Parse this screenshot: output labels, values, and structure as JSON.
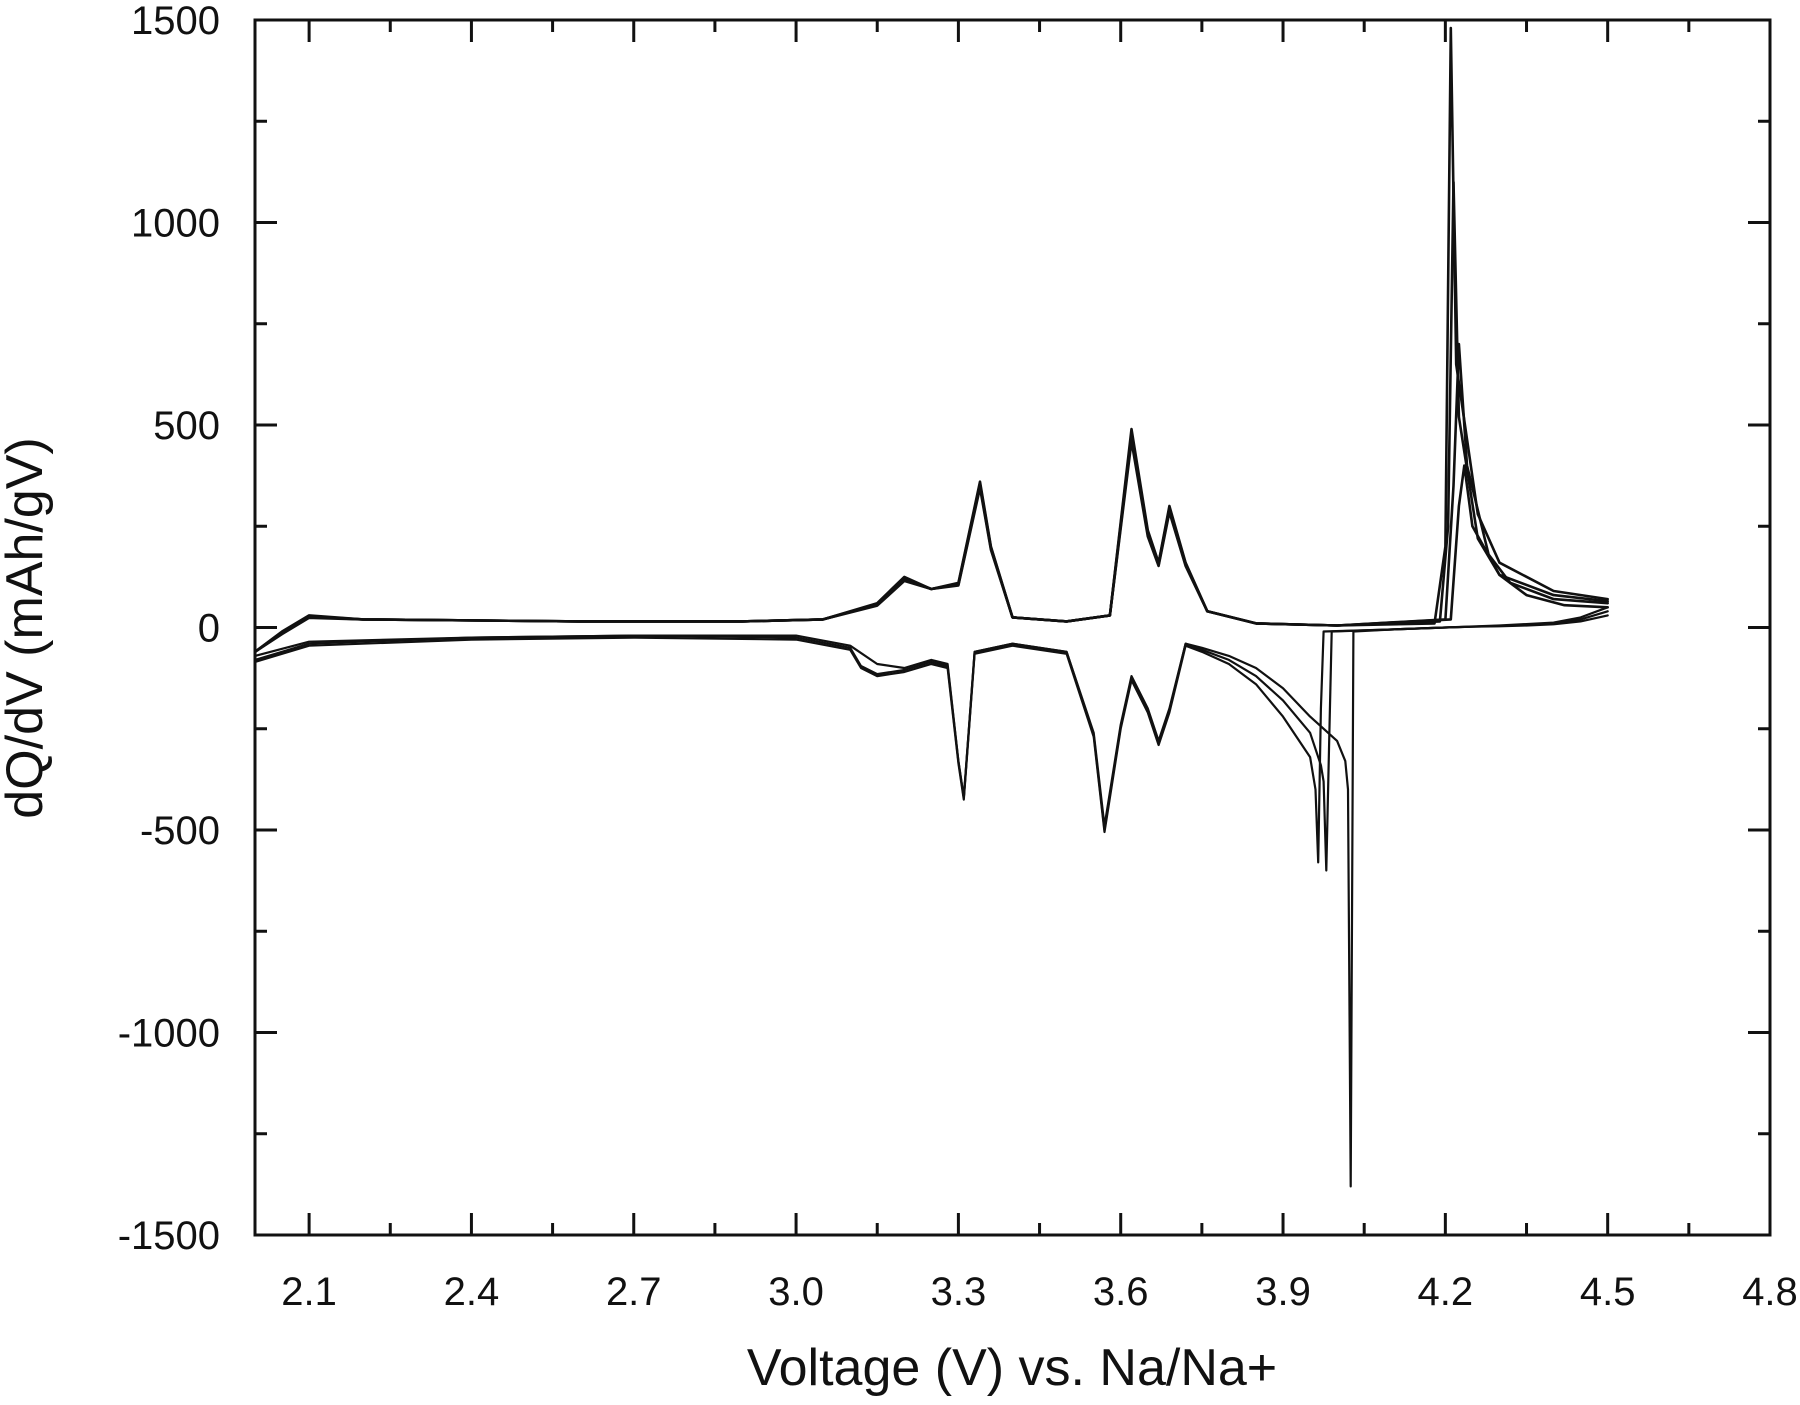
{
  "chart_data": {
    "type": "line",
    "xlabel": "Voltage (V) vs. Na/Na+",
    "ylabel": "dQ/dV (mAh/gV)",
    "xlim": [
      2.0,
      4.8
    ],
    "ylim": [
      -1500,
      1500
    ],
    "xticks": [
      2.1,
      2.4,
      2.7,
      3.0,
      3.3,
      3.6,
      3.9,
      4.2,
      4.5,
      4.8
    ],
    "xtick_labels": [
      "2.1",
      "2.4",
      "2.7",
      "3.0",
      "3.3",
      "3.6",
      "3.9",
      "4.2",
      "4.5",
      "4.8"
    ],
    "yticks": [
      1500,
      1000,
      500,
      0,
      -500,
      -1000,
      -1500
    ],
    "ytick_labels": [
      "1500",
      "1000",
      "500",
      "0",
      "-500",
      "-1000",
      "-1500"
    ],
    "grid": false,
    "legend": "none",
    "line_color": "#111111",
    "series": [
      {
        "x": [
          2.0,
          2.05,
          2.1,
          2.2,
          2.6,
          2.9,
          3.05,
          3.15,
          3.2,
          3.25,
          3.3,
          3.34,
          3.36,
          3.4,
          3.5,
          3.58,
          3.62,
          3.65,
          3.67,
          3.69,
          3.72,
          3.76,
          3.85,
          4.0,
          4.18,
          4.2,
          4.21,
          4.22,
          4.26,
          4.3,
          4.4,
          4.5
        ],
        "y": [
          -60,
          -10,
          30,
          20,
          15,
          15,
          20,
          60,
          125,
          95,
          110,
          360,
          200,
          25,
          15,
          30,
          490,
          240,
          160,
          300,
          160,
          40,
          10,
          5,
          10,
          200,
          1480,
          650,
          280,
          160,
          90,
          70
        ]
      },
      {
        "x": [
          2.0,
          2.05,
          2.1,
          2.2,
          2.6,
          2.9,
          3.05,
          3.15,
          3.2,
          3.25,
          3.3,
          3.34,
          3.36,
          3.4,
          3.5,
          3.58,
          3.62,
          3.65,
          3.67,
          3.69,
          3.72,
          3.76,
          3.85,
          4.0,
          4.19,
          4.205,
          4.215,
          4.225,
          4.26,
          4.3,
          4.4,
          4.5
        ],
        "y": [
          -60,
          -12,
          28,
          20,
          15,
          15,
          20,
          58,
          120,
          95,
          108,
          355,
          198,
          25,
          15,
          30,
          480,
          235,
          158,
          295,
          158,
          40,
          10,
          5,
          15,
          250,
          1100,
          520,
          220,
          130,
          80,
          65
        ]
      },
      {
        "x": [
          2.0,
          2.05,
          2.1,
          2.2,
          2.6,
          2.9,
          3.05,
          3.15,
          3.2,
          3.25,
          3.3,
          3.34,
          3.36,
          3.4,
          3.5,
          3.58,
          3.62,
          3.65,
          3.67,
          3.69,
          3.72,
          3.76,
          3.85,
          4.0,
          4.2,
          4.215,
          4.225,
          4.24,
          4.28,
          4.32,
          4.4,
          4.5
        ],
        "y": [
          -60,
          -14,
          26,
          20,
          15,
          15,
          20,
          56,
          118,
          95,
          106,
          350,
          195,
          25,
          15,
          30,
          470,
          230,
          155,
          290,
          155,
          40,
          10,
          5,
          20,
          350,
          700,
          400,
          180,
          110,
          70,
          60
        ]
      },
      {
        "x": [
          2.0,
          2.05,
          2.1,
          2.2,
          2.6,
          2.9,
          3.05,
          3.15,
          3.2,
          3.25,
          3.3,
          3.34,
          3.36,
          3.4,
          3.5,
          3.58,
          3.62,
          3.65,
          3.67,
          3.69,
          3.72,
          3.76,
          3.85,
          4.0,
          4.21,
          4.225,
          4.235,
          4.25,
          4.3,
          4.35,
          4.42,
          4.5
        ],
        "y": [
          -60,
          -16,
          24,
          20,
          15,
          15,
          20,
          54,
          115,
          95,
          104,
          345,
          192,
          25,
          15,
          30,
          460,
          225,
          152,
          285,
          152,
          40,
          10,
          5,
          20,
          300,
          400,
          250,
          130,
          80,
          55,
          50
        ]
      },
      {
        "x": [
          4.5,
          4.45,
          4.4,
          4.35,
          4.3,
          4.25,
          4.2,
          4.1,
          4.03,
          4.025,
          4.02,
          4.015,
          4.0,
          3.95,
          3.9,
          3.85,
          3.8,
          3.75,
          3.72,
          3.69,
          3.67,
          3.65,
          3.62,
          3.6,
          3.57,
          3.55,
          3.5,
          3.4,
          3.33,
          3.31,
          3.3,
          3.28,
          3.25,
          3.2,
          3.15,
          3.1,
          3.0,
          2.7,
          2.4,
          2.1,
          2.0
        ],
        "y": [
          30,
          15,
          8,
          5,
          3,
          2,
          0,
          -5,
          -10,
          -1380,
          -400,
          -330,
          -280,
          -220,
          -150,
          -100,
          -70,
          -50,
          -40,
          -200,
          -280,
          -200,
          -120,
          -240,
          -490,
          -260,
          -60,
          -40,
          -60,
          -420,
          -330,
          -90,
          -80,
          -100,
          -90,
          -45,
          -20,
          -20,
          -25,
          -35,
          -70
        ]
      },
      {
        "x": [
          4.5,
          4.45,
          4.4,
          4.35,
          4.3,
          4.25,
          4.2,
          4.1,
          3.99,
          3.985,
          3.98,
          3.975,
          3.97,
          3.95,
          3.9,
          3.85,
          3.8,
          3.75,
          3.72,
          3.69,
          3.67,
          3.65,
          3.62,
          3.6,
          3.57,
          3.55,
          3.5,
          3.4,
          3.33,
          3.31,
          3.3,
          3.28,
          3.25,
          3.2,
          3.15,
          3.12,
          3.1,
          3.0,
          2.7,
          2.4,
          2.1,
          2.0
        ],
        "y": [
          40,
          20,
          10,
          6,
          4,
          2,
          0,
          -5,
          -10,
          -300,
          -600,
          -380,
          -340,
          -260,
          -180,
          -120,
          -80,
          -55,
          -40,
          -205,
          -285,
          -205,
          -125,
          -245,
          -500,
          -265,
          -60,
          -40,
          -60,
          -420,
          -330,
          -95,
          -85,
          -105,
          -115,
          -95,
          -50,
          -25,
          -20,
          -25,
          -40,
          -80
        ]
      },
      {
        "x": [
          4.5,
          4.45,
          4.4,
          4.3,
          4.2,
          4.1,
          3.975,
          3.97,
          3.965,
          3.96,
          3.95,
          3.9,
          3.85,
          3.8,
          3.75,
          3.72,
          3.69,
          3.67,
          3.65,
          3.62,
          3.6,
          3.57,
          3.55,
          3.5,
          3.4,
          3.33,
          3.31,
          3.3,
          3.28,
          3.25,
          3.2,
          3.15,
          3.12,
          3.1,
          3.0,
          2.7,
          2.4,
          2.1,
          2.0
        ],
        "y": [
          50,
          25,
          12,
          5,
          0,
          -5,
          -10,
          -200,
          -580,
          -400,
          -320,
          -220,
          -140,
          -90,
          -60,
          -45,
          -210,
          -290,
          -210,
          -130,
          -250,
          -505,
          -270,
          -65,
          -45,
          -65,
          -425,
          -335,
          -100,
          -90,
          -110,
          -120,
          -100,
          -55,
          -30,
          -25,
          -30,
          -45,
          -85
        ]
      }
    ]
  }
}
